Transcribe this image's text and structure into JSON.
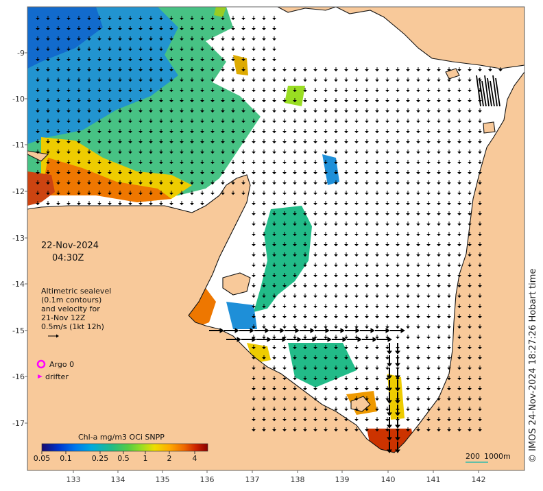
{
  "map": {
    "date": "22-Nov-2024",
    "time": "04:30Z",
    "altimetry_lines": [
      "Altimetric sealevel",
      "(0.1m contours)",
      "and velocity for",
      "21-Nov 12Z",
      "0.5m/s (1kt 12h)"
    ],
    "legend": {
      "argo_label": "Argo 0",
      "drifter_label": "drifter",
      "argo_color": "#ff00ff",
      "drifter_color": "#ff00ff"
    },
    "colorbar": {
      "title": "Chl-a mg/m3 OCi SNPP",
      "ticks": [
        "0.05",
        "0.1",
        "0.25",
        "0.5",
        "1",
        "2",
        "4"
      ],
      "colors": [
        "#1a0a6e",
        "#0033cc",
        "#0077ee",
        "#00aadd",
        "#22bb88",
        "#55cc44",
        "#99dd22",
        "#eedd00",
        "#ffaa00",
        "#ee6600",
        "#cc2200",
        "#880000"
      ]
    },
    "scale": {
      "label_left": "200",
      "label_right": "1000m"
    },
    "x_ticks": [
      "133",
      "134",
      "135",
      "136",
      "137",
      "138",
      "139",
      "140",
      "141",
      "142"
    ],
    "y_ticks": [
      "-9",
      "-10",
      "-11",
      "-12",
      "-13",
      "-14",
      "-15",
      "-16",
      "-17"
    ],
    "credit": "© IMOS 24-Nov-2024 18:27:26 Hobart time",
    "colors": {
      "land": "#f8c99a",
      "sea": "#ffffff",
      "coast": "#111111"
    }
  }
}
